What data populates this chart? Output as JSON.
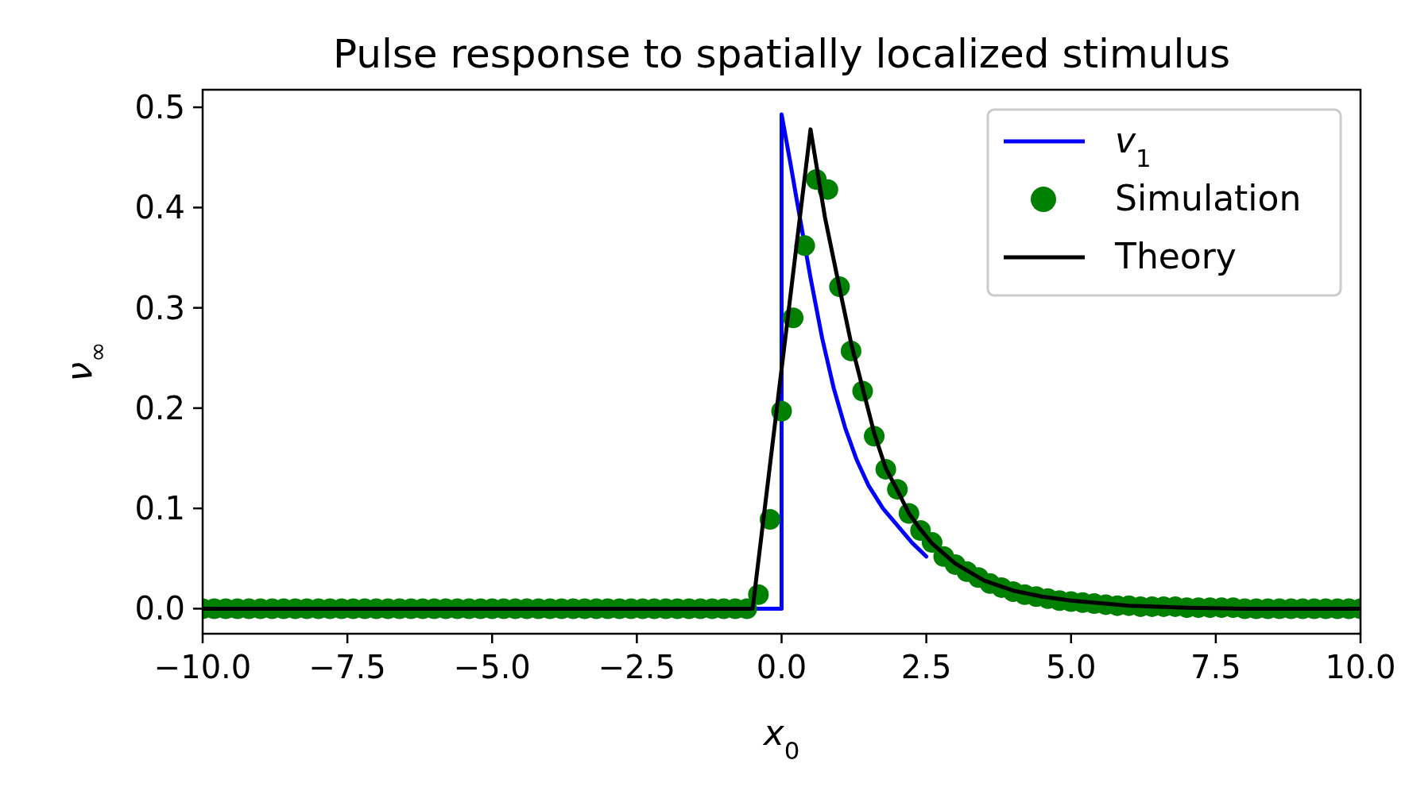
{
  "chart_data": {
    "type": "line",
    "title": "Pulse response to spatially localized stimulus",
    "xlabel": "x$_{0}$",
    "ylabel": "ν$_{∞}$",
    "xlim": [
      -10,
      10
    ],
    "xticks": [
      {
        "value": -10,
        "label": "−10.0"
      },
      {
        "value": -7.5,
        "label": "−7.5"
      },
      {
        "value": -5,
        "label": "−5.0"
      },
      {
        "value": -2.5,
        "label": "−2.5"
      },
      {
        "value": 0,
        "label": "0.0"
      },
      {
        "value": 2.5,
        "label": "2.5"
      },
      {
        "value": 5,
        "label": "5.0"
      },
      {
        "value": 7.5,
        "label": "7.5"
      },
      {
        "value": 10,
        "label": "10.0"
      }
    ],
    "ylim": [
      -0.025,
      0.5175
    ],
    "yticks": [
      {
        "value": 0,
        "label": "0.0"
      },
      {
        "value": 0.1,
        "label": "0.1"
      },
      {
        "value": 0.2,
        "label": "0.2"
      },
      {
        "value": 0.3,
        "label": "0.3"
      },
      {
        "value": 0.4,
        "label": "0.4"
      },
      {
        "value": 0.5,
        "label": "0.5"
      }
    ],
    "legend": "top right",
    "grid": false,
    "series": [
      {
        "name": "v$_{1}$",
        "color": "#0000ff",
        "x": [
          -10,
          0,
          0,
          0.15,
          0.3,
          0.5,
          0.7,
          0.9,
          1.1,
          1.3,
          1.5,
          1.75,
          2.0,
          2.25,
          2.5
        ],
        "values": [
          0,
          0,
          0.493,
          0.445,
          0.395,
          0.33,
          0.27,
          0.22,
          0.18,
          0.148,
          0.123,
          0.1,
          0.083,
          0.066,
          0.052
        ]
      },
      {
        "name": "Simulation",
        "type": "scatter",
        "marker": "circle",
        "color": "#008000",
        "x": [
          -10,
          -9.8,
          -9.6,
          -9.4,
          -9.2,
          -9,
          -8.8,
          -8.6,
          -8.4,
          -8.2,
          -8,
          -7.8,
          -7.6,
          -7.4,
          -7.2,
          -7,
          -6.8,
          -6.6,
          -6.4,
          -6.2,
          -6,
          -5.8,
          -5.6,
          -5.4,
          -5.2,
          -5,
          -4.8,
          -4.6,
          -4.4,
          -4.2,
          -4,
          -3.8,
          -3.6,
          -3.4,
          -3.2,
          -3,
          -2.8,
          -2.6,
          -2.4,
          -2.2,
          -2,
          -1.8,
          -1.6,
          -1.4,
          -1.2,
          -1,
          -0.8,
          -0.6,
          -0.4,
          -0.2,
          0,
          0.2,
          0.4,
          0.6,
          0.8,
          1,
          1.2,
          1.4,
          1.6,
          1.8,
          2,
          2.2,
          2.4,
          2.6,
          2.8,
          3,
          3.2,
          3.4,
          3.6,
          3.8,
          4,
          4.2,
          4.4,
          4.6,
          4.8,
          5,
          5.2,
          5.4,
          5.6,
          5.8,
          6,
          6.2,
          6.4,
          6.6,
          6.8,
          7,
          7.2,
          7.4,
          7.6,
          7.8,
          8,
          8.2,
          8.4,
          8.6,
          8.8,
          9,
          9.2,
          9.4,
          9.6,
          9.8,
          10
        ],
        "values": [
          0,
          0,
          0,
          0,
          0,
          0,
          0,
          0,
          0,
          0,
          0,
          0,
          0,
          0,
          0,
          0,
          0,
          0,
          0,
          0,
          0,
          0,
          0,
          0,
          0,
          0,
          0,
          0,
          0,
          0,
          0,
          0,
          0,
          0,
          0,
          0,
          0,
          0,
          0,
          0,
          0,
          0,
          0,
          0,
          0,
          0,
          0,
          0,
          0.014,
          0.089,
          0.197,
          0.29,
          0.362,
          0.428,
          0.418,
          0.321,
          0.257,
          0.217,
          0.172,
          0.139,
          0.119,
          0.095,
          0.078,
          0.066,
          0.052,
          0.044,
          0.037,
          0.031,
          0.025,
          0.021,
          0.017,
          0.014,
          0.012,
          0.01,
          0.008,
          0.007,
          0.006,
          0.005,
          0.004,
          0.003,
          0.003,
          0.002,
          0.002,
          0.002,
          0.002,
          0.001,
          0.001,
          0.001,
          0.001,
          0.001,
          0,
          0,
          0,
          0,
          0,
          0,
          0,
          0,
          0,
          0,
          0
        ]
      },
      {
        "name": "Theory",
        "color": "#000000",
        "x": [
          -10,
          -0.5,
          0.5,
          0.75,
          1.0,
          1.2,
          1.4,
          1.6,
          1.8,
          2.0,
          2.2,
          2.4,
          2.6,
          3.0,
          3.5,
          4.0,
          4.5,
          5.0,
          6.0,
          7.0,
          8.0,
          10.0
        ],
        "values": [
          0,
          0,
          0.478,
          0.39,
          0.32,
          0.265,
          0.22,
          0.175,
          0.14,
          0.118,
          0.095,
          0.079,
          0.065,
          0.045,
          0.028,
          0.018,
          0.012,
          0.008,
          0.003,
          0.001,
          0,
          0
        ]
      }
    ]
  }
}
